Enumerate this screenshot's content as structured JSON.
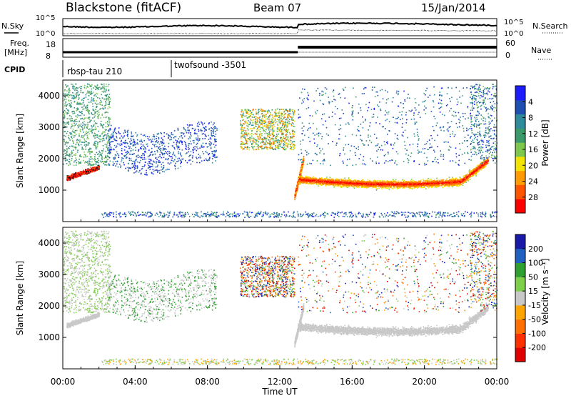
{
  "header": {
    "station": "Blackstone (fitACF)",
    "beam": "Beam 07",
    "date": "15/Jan/2014"
  },
  "top_panels": {
    "nsky_label": "N.Sky",
    "nsky_ticks": [
      "10^5",
      "10^0"
    ],
    "nsearch_label": "N.Search",
    "freq_label_1": "Freq.",
    "freq_label_2": "[MHz]",
    "freq_ticks": [
      "18",
      "8"
    ],
    "nave_label": "Nave",
    "nave_ticks": [
      "60",
      "0"
    ],
    "cpid_label": "CPID",
    "cpid_1": "rbsp-tau 210",
    "cpid_2": "twofsound -3501"
  },
  "chart_data": [
    {
      "type": "heatmap",
      "name": "power",
      "ylabel": "Slant Range [km]",
      "ylim": [
        0,
        4500
      ],
      "yticks": [
        1000,
        2000,
        3000,
        4000
      ],
      "colorbar_label": "Power [dB]",
      "colorbar_ticks": [
        "4",
        "8",
        "12",
        "16",
        "20",
        "24",
        "28"
      ],
      "colorbar_colors": [
        "#1c1cff",
        "#1f4fb0",
        "#2f8a9b",
        "#3a9a6a",
        "#7ec850",
        "#f2e400",
        "#ff9a00",
        "#ff5400",
        "#ff0000"
      ]
    },
    {
      "type": "heatmap",
      "name": "velocity",
      "ylabel": "Slant Range [km]",
      "ylim": [
        0,
        4500
      ],
      "yticks": [
        1000,
        2000,
        3000,
        4000
      ],
      "colorbar_label": "Velocity [m s⁻¹]",
      "colorbar_ticks": [
        "200",
        "100",
        "50",
        "15",
        "-15",
        "-50",
        "-100",
        "-200"
      ],
      "colorbar_colors": [
        "#1a1aa8",
        "#2060c0",
        "#2fa030",
        "#7ed04a",
        "#c8c8c8",
        "#ffa500",
        "#ff7000",
        "#ff3000",
        "#e00000"
      ]
    }
  ],
  "time_axis": {
    "label": "Time UT",
    "ticks": [
      "00:00",
      "04:00",
      "08:00",
      "12:00",
      "16:00",
      "20:00",
      "00:00"
    ]
  }
}
